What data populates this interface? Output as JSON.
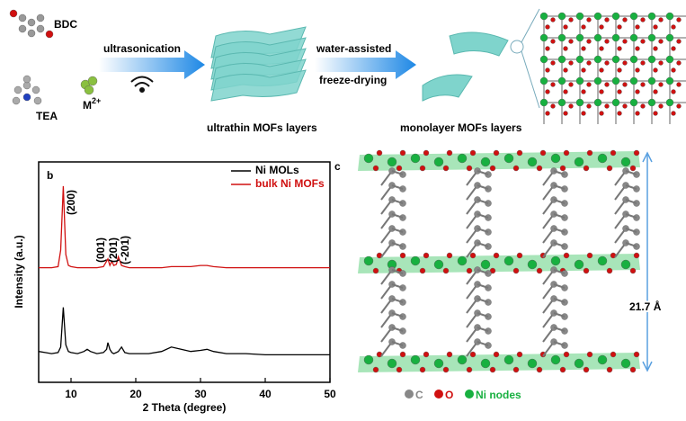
{
  "scheme": {
    "bdc": "BDC",
    "tea": "TEA",
    "metal": {
      "base": "M",
      "sup": "2+"
    },
    "step1": "ultrasonication",
    "step2": [
      "water-assisted",
      "freeze-drying"
    ],
    "product1": "ultrathin MOFs layers",
    "product2": "monolayer MOFs layers"
  },
  "chart_data": {
    "type": "line",
    "panel_label": "b",
    "xlabel": "2 Theta (degree)",
    "ylabel": "Intensity (a.u.)",
    "x": [
      5,
      6,
      7,
      8,
      8.4,
      8.8,
      9.2,
      9.6,
      10,
      11,
      12,
      12.5,
      13,
      14,
      15,
      15.5,
      15.7,
      16,
      16.3,
      16.6,
      17,
      17.3,
      17.8,
      18.3,
      19,
      20,
      22,
      24,
      25.5,
      27,
      28.5,
      30,
      31,
      32,
      34,
      37,
      40,
      43,
      46,
      50
    ],
    "series": [
      {
        "name": "Ni MOLs",
        "color": "#000000",
        "values": [
          14,
          13.5,
          13,
          13.5,
          16,
          34,
          17,
          14,
          13.5,
          13,
          14,
          15,
          14,
          13,
          13.5,
          15,
          18,
          15,
          13.5,
          13,
          13.5,
          14,
          16,
          13.5,
          13,
          13,
          13,
          14,
          16,
          15,
          14,
          14.5,
          15,
          14,
          13,
          13,
          12.5,
          12.5,
          12.5,
          12.5
        ]
      },
      {
        "name": "bulk Ni MOFs",
        "color": "#d01010",
        "values": [
          52,
          52,
          52,
          52.5,
          60,
          89,
          58,
          53,
          52.5,
          52,
          52,
          52,
          52,
          52,
          52.5,
          55,
          56,
          53,
          55,
          53,
          53.5,
          57,
          53,
          52.5,
          52,
          52,
          52,
          52,
          52.5,
          52.5,
          52.5,
          53,
          53,
          52.5,
          52,
          52,
          52,
          52,
          52,
          52
        ]
      }
    ],
    "xlim": [
      5,
      50
    ],
    "xticks": [
      10,
      20,
      30,
      40,
      50
    ],
    "ylim": [
      0,
      100
    ],
    "legend": "upper right",
    "peak_labels": [
      "(200)",
      "(001)",
      "(201)",
      "(-201)"
    ]
  },
  "structure": {
    "panel_label": "c",
    "spacing": "21.7 Å",
    "legend": [
      "C",
      "O",
      "Ni nodes"
    ]
  }
}
